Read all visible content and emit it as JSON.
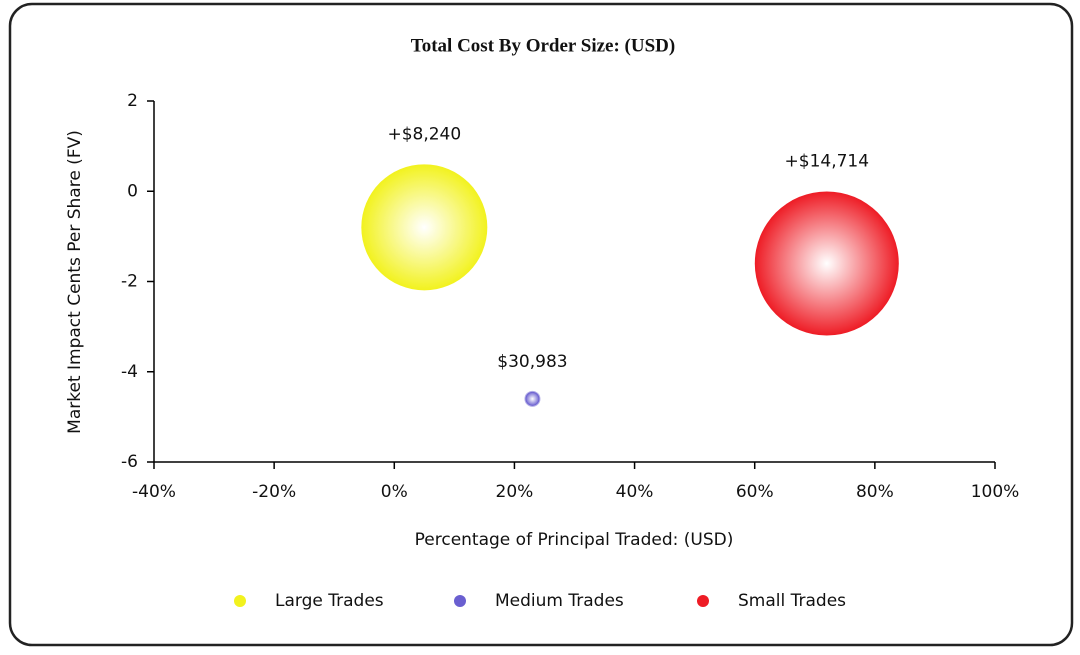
{
  "chart_data": {
    "type": "bubble",
    "title": "Total Cost By Order Size: (USD)",
    "x_label": "Percentage of Principal Traded: (USD)",
    "y_label": "Market Impact Cents Per Share (FV)",
    "xlim": [
      -40,
      100
    ],
    "xticks": [
      {
        "value": -40,
        "label": "-40%"
      },
      {
        "value": -20,
        "label": "-20%"
      },
      {
        "value": 0,
        "label": "0%"
      },
      {
        "value": 20,
        "label": "20%"
      },
      {
        "value": 40,
        "label": "40%"
      },
      {
        "value": 60,
        "label": "60%"
      },
      {
        "value": 80,
        "label": "80%"
      },
      {
        "value": 100,
        "label": "100%"
      }
    ],
    "ylim": [
      -6,
      2
    ],
    "yticks": [
      -6,
      -4,
      -2,
      0,
      2
    ],
    "legend": "bottom",
    "series": [
      {
        "name": "Large Trades",
        "color": "#f2f21e",
        "x": [
          5
        ],
        "values": [
          -0.8
        ],
        "sizes": [
          63
        ],
        "labels": [
          "+$8,240"
        ]
      },
      {
        "name": "Medium Trades",
        "color": "#6a5fd0",
        "x": [
          23
        ],
        "values": [
          -4.6
        ],
        "sizes": [
          7
        ],
        "labels": [
          "$30,983"
        ]
      },
      {
        "name": "Small Trades",
        "color": "#ee1c25",
        "x": [
          72
        ],
        "values": [
          -1.6
        ],
        "sizes": [
          72
        ],
        "labels": [
          "+$14,714"
        ]
      }
    ]
  }
}
